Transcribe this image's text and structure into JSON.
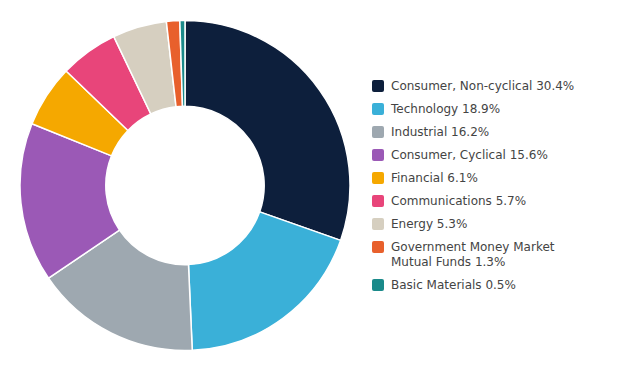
{
  "chart_data": {
    "type": "donut",
    "categories": [
      "Consumer, Non-cyclical 30.4%",
      "Technology 18.9%",
      "Industrial 16.2%",
      "Consumer, Cyclical 15.6%",
      "Financial 6.1%",
      "Communications 5.7%",
      "Energy 5.3%",
      "Government Money Market\nMutual Funds 1.3%",
      "Basic Materials 0.5%"
    ],
    "values": [
      30.4,
      18.9,
      16.2,
      15.6,
      6.1,
      5.7,
      5.3,
      1.3,
      0.5
    ],
    "colors": [
      "#0d1f3c",
      "#3ab0d8",
      "#9ea8b0",
      "#9b59b6",
      "#f5a800",
      "#e8457a",
      "#d6cfc0",
      "#e8602c",
      "#1a8a8a"
    ],
    "legend": "right"
  }
}
